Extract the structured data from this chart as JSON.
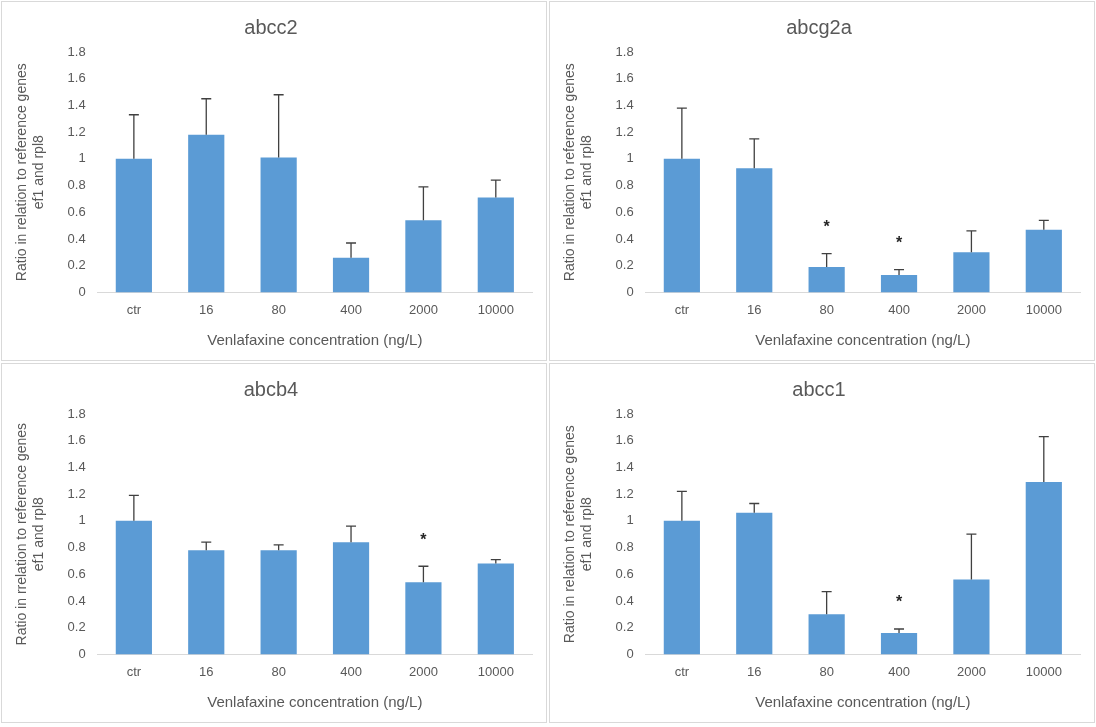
{
  "chart_data": [
    {
      "type": "bar",
      "title": "abcc2",
      "xlabel": "Venlafaxine concentration (ng/L)",
      "ylabel": "Ratio in relation to reference genes\nef1 and rpl8",
      "categories": [
        "ctr",
        "16",
        "80",
        "400",
        "2000",
        "10000"
      ],
      "values": [
        1.0,
        1.18,
        1.01,
        0.26,
        0.54,
        0.71
      ],
      "errors": [
        [
          1.0,
          1.33
        ],
        [
          1.18,
          1.45
        ],
        [
          1.01,
          1.48
        ],
        [
          0.26,
          0.37
        ],
        [
          0.54,
          0.79
        ],
        [
          0.71,
          0.84
        ]
      ],
      "color": "#5b9bd5",
      "ylim": [
        0,
        1.8
      ],
      "yticks": [
        0,
        0.2,
        0.4,
        0.6,
        0.8,
        1,
        1.2,
        1.4,
        1.6,
        1.8
      ],
      "grid": false,
      "legend": false
    },
    {
      "type": "bar",
      "title": "abcg2a",
      "xlabel": "Venlafaxine concentration (ng/L)",
      "ylabel": "Ratio in relation to reference genes\nef1 and rpl8",
      "categories": [
        "ctr",
        "16",
        "80",
        "400",
        "2000",
        "10000"
      ],
      "values": [
        1.0,
        0.93,
        0.19,
        0.13,
        0.3,
        0.47
      ],
      "errors": [
        [
          1.0,
          1.38
        ],
        [
          0.93,
          1.15
        ],
        [
          0.19,
          0.29
        ],
        [
          0.13,
          0.17
        ],
        [
          0.3,
          0.46
        ],
        [
          0.47,
          0.54
        ]
      ],
      "color": "#5b9bd5",
      "ylim": [
        0,
        1.8
      ],
      "yticks": [
        0,
        0.2,
        0.4,
        0.6,
        0.8,
        1,
        1.2,
        1.4,
        1.6,
        1.8
      ],
      "grid": false,
      "legend": false,
      "annotations": [
        {
          "text": "*",
          "x": "80",
          "y": 0.29
        },
        {
          "text": "*",
          "x": "400",
          "y": 0.17
        }
      ]
    },
    {
      "type": "bar",
      "title": "abcb4",
      "xlabel": "Venlafaxine concentration (ng/L)",
      "ylabel": "Ratio in rrelation to reference genes\nef1 and rpl8",
      "categories": [
        "ctr",
        "16",
        "80",
        "400",
        "2000",
        "10000"
      ],
      "values": [
        1.0,
        0.78,
        0.78,
        0.84,
        0.54,
        0.68
      ],
      "errors": [
        [
          1.0,
          1.19
        ],
        [
          0.78,
          0.84
        ],
        [
          0.78,
          0.82
        ],
        [
          0.84,
          0.96
        ],
        [
          0.54,
          0.66
        ],
        [
          0.68,
          0.71
        ]
      ],
      "color": "#5b9bd5",
      "ylim": [
        0,
        1.8
      ],
      "yticks": [
        0,
        0.2,
        0.4,
        0.6,
        0.8,
        1,
        1.2,
        1.4,
        1.6,
        1.8
      ],
      "grid": false,
      "legend": false,
      "annotations": [
        {
          "text": "*",
          "x": "2000",
          "y": 0.66
        }
      ]
    },
    {
      "type": "bar",
      "title": "abcc1",
      "xlabel": "Venlafaxine concentration (ng/L)",
      "ylabel": "Ratio in relation to reference genes\nef1 and rpl8",
      "categories": [
        "ctr",
        "16",
        "80",
        "400",
        "2000",
        "10000"
      ],
      "values": [
        1.0,
        1.06,
        0.3,
        0.16,
        0.56,
        1.29
      ],
      "errors": [
        [
          1.0,
          1.22
        ],
        [
          1.06,
          1.13
        ],
        [
          0.3,
          0.47
        ],
        [
          0.16,
          0.19
        ],
        [
          0.56,
          0.9
        ],
        [
          1.29,
          1.63
        ]
      ],
      "color": "#5b9bd5",
      "ylim": [
        0,
        1.8
      ],
      "yticks": [
        0,
        0.2,
        0.4,
        0.6,
        0.8,
        1,
        1.2,
        1.4,
        1.6,
        1.8
      ],
      "grid": false,
      "legend": false,
      "annotations": [
        {
          "text": "*",
          "x": "400",
          "y": 0.19
        }
      ]
    }
  ]
}
